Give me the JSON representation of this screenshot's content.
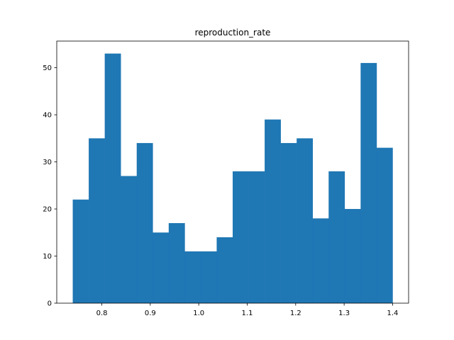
{
  "chart_data": {
    "type": "bar",
    "title": "reproduction_rate",
    "xlabel": "",
    "ylabel": "",
    "bar_color": "#1f77b4",
    "xlim": [
      0.707,
      1.433
    ],
    "ylim": [
      0,
      55.65
    ],
    "grid": false,
    "bins": [
      {
        "x0": 0.74,
        "x1": 0.773,
        "count": 22
      },
      {
        "x0": 0.773,
        "x1": 0.806,
        "count": 35
      },
      {
        "x0": 0.806,
        "x1": 0.839,
        "count": 53
      },
      {
        "x0": 0.839,
        "x1": 0.872,
        "count": 27
      },
      {
        "x0": 0.872,
        "x1": 0.905,
        "count": 34
      },
      {
        "x0": 0.905,
        "x1": 0.938,
        "count": 15
      },
      {
        "x0": 0.938,
        "x1": 0.971,
        "count": 17
      },
      {
        "x0": 0.971,
        "x1": 1.004,
        "count": 11
      },
      {
        "x0": 1.004,
        "x1": 1.037,
        "count": 11
      },
      {
        "x0": 1.037,
        "x1": 1.07,
        "count": 14
      },
      {
        "x0": 1.07,
        "x1": 1.103,
        "count": 28
      },
      {
        "x0": 1.103,
        "x1": 1.136,
        "count": 28
      },
      {
        "x0": 1.136,
        "x1": 1.169,
        "count": 39
      },
      {
        "x0": 1.169,
        "x1": 1.202,
        "count": 34
      },
      {
        "x0": 1.202,
        "x1": 1.235,
        "count": 35
      },
      {
        "x0": 1.235,
        "x1": 1.268,
        "count": 18
      },
      {
        "x0": 1.268,
        "x1": 1.301,
        "count": 28
      },
      {
        "x0": 1.301,
        "x1": 1.334,
        "count": 20
      },
      {
        "x0": 1.334,
        "x1": 1.367,
        "count": 51
      },
      {
        "x0": 1.367,
        "x1": 1.4,
        "count": 33
      }
    ],
    "xticks": [
      {
        "value": 0.8,
        "label": "0.8"
      },
      {
        "value": 0.9,
        "label": "0.9"
      },
      {
        "value": 1.0,
        "label": "1.0"
      },
      {
        "value": 1.1,
        "label": "1.1"
      },
      {
        "value": 1.2,
        "label": "1.2"
      },
      {
        "value": 1.3,
        "label": "1.3"
      },
      {
        "value": 1.4,
        "label": "1.4"
      }
    ],
    "yticks": [
      {
        "value": 0,
        "label": "0"
      },
      {
        "value": 10,
        "label": "10"
      },
      {
        "value": 20,
        "label": "20"
      },
      {
        "value": 30,
        "label": "30"
      },
      {
        "value": 40,
        "label": "40"
      },
      {
        "value": 50,
        "label": "50"
      }
    ]
  }
}
